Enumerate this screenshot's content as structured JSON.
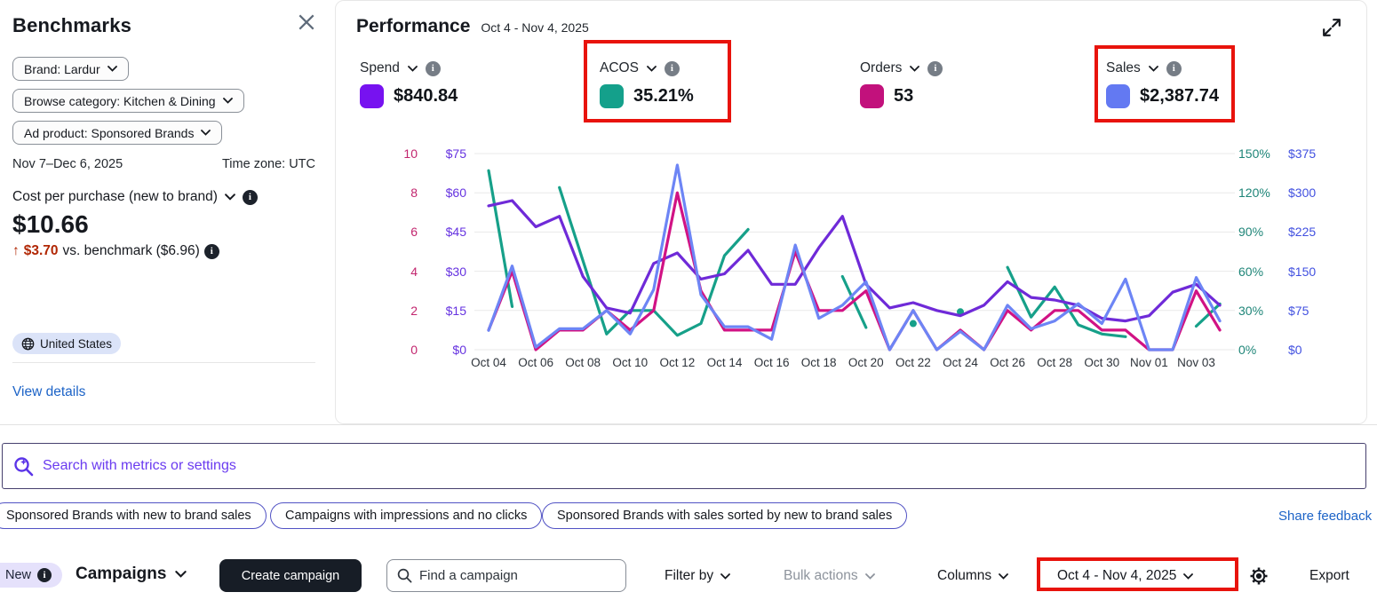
{
  "benchmarks": {
    "title": "Benchmarks",
    "filters": [
      {
        "label": "Brand: Lardur"
      },
      {
        "label": "Browse category: Kitchen & Dining"
      },
      {
        "label": "Ad product: Sponsored Brands"
      }
    ],
    "date_range": "Nov 7–Dec 6, 2025",
    "timezone": "Time zone: UTC",
    "metric_label": "Cost per purchase (new to brand)",
    "metric_value": "$10.66",
    "delta_arrow": "↑",
    "delta_value": "$3.70",
    "delta_text": "vs. benchmark ($6.96)",
    "region": "United States",
    "view_details": "View details"
  },
  "performance": {
    "title": "Performance",
    "date_range": "Oct 4 - Nov 4, 2025",
    "metrics": [
      {
        "label": "Spend",
        "value": "$840.84",
        "color": "#7712f0"
      },
      {
        "label": "ACOS",
        "value": "35.21%",
        "color": "#14a08b"
      },
      {
        "label": "Orders",
        "value": "53",
        "color": "#c2117c"
      },
      {
        "label": "Sales",
        "value": "$2,387.74",
        "color": "#6379f2"
      }
    ]
  },
  "search": {
    "placeholder": "Search with metrics or settings"
  },
  "suggestions": {
    "pills": [
      "Sponsored Brands with new to brand sales",
      "Campaigns with impressions and no clicks",
      "Sponsored Brands with sales sorted by new to brand sales"
    ],
    "feedback_link": "Share feedback"
  },
  "toolbar": {
    "new_badge": "New",
    "title": "Campaigns",
    "create_button": "Create campaign",
    "find_placeholder": "Find a campaign",
    "filter_by": "Filter by",
    "bulk_actions": "Bulk actions",
    "columns": "Columns",
    "date_range": "Oct 4 - Nov 4, 2025",
    "export": "Export"
  },
  "annotation_color": "#e8130c",
  "chart_data": {
    "type": "line",
    "title": "Performance Oct 4 - Nov 4, 2025",
    "grid": true,
    "x": [
      "Oct 04",
      "Oct 05",
      "Oct 06",
      "Oct 07",
      "Oct 08",
      "Oct 09",
      "Oct 10",
      "Oct 11",
      "Oct 12",
      "Oct 13",
      "Oct 14",
      "Oct 15",
      "Oct 16",
      "Oct 17",
      "Oct 18",
      "Oct 19",
      "Oct 20",
      "Oct 21",
      "Oct 22",
      "Oct 23",
      "Oct 24",
      "Oct 25",
      "Oct 26",
      "Oct 27",
      "Oct 28",
      "Oct 29",
      "Oct 30",
      "Oct 31",
      "Nov 01",
      "Nov 02",
      "Nov 03",
      "Nov 04"
    ],
    "x_tick_labels": [
      "Oct 04",
      "Oct 06",
      "Oct 08",
      "Oct 10",
      "Oct 12",
      "Oct 14",
      "Oct 16",
      "Oct 18",
      "Oct 20",
      "Oct 22",
      "Oct 24",
      "Oct 26",
      "Oct 28",
      "Oct 30",
      "Nov 01",
      "Nov 03"
    ],
    "axes": {
      "left_orders": {
        "ticks": [
          "0",
          "2",
          "4",
          "6",
          "8",
          "10"
        ],
        "max": 10,
        "color": "#c2256e"
      },
      "left_spend": {
        "ticks": [
          "$0",
          "$15",
          "$30",
          "$45",
          "$60",
          "$75"
        ],
        "max": 75,
        "color": "#6633e0"
      },
      "right_acos": {
        "ticks": [
          "0%",
          "30%",
          "60%",
          "90%",
          "120%",
          "150%"
        ],
        "max": 150,
        "color": "#1e8578"
      },
      "right_sales": {
        "ticks": [
          "$0",
          "$75",
          "$150",
          "$225",
          "$300",
          "$375"
        ],
        "max": 375,
        "color": "#4150e0"
      }
    },
    "series": [
      {
        "name": "ACOS",
        "unit": "%",
        "axis_max": 150,
        "color": "#16a089",
        "values": [
          137,
          33,
          null,
          124,
          68,
          12,
          30,
          30,
          11,
          20,
          72,
          92,
          null,
          null,
          null,
          56,
          17,
          null,
          20,
          null,
          29,
          null,
          63,
          25,
          48,
          19,
          12,
          10,
          null,
          null,
          18,
          35
        ]
      },
      {
        "name": "Spend",
        "unit": "$",
        "axis_max": 75,
        "color": "#6f2ad8",
        "values": [
          55,
          57,
          47,
          51,
          28,
          16,
          14,
          33,
          37,
          27,
          29,
          38,
          25,
          25,
          39,
          51,
          25,
          16,
          18,
          15,
          13,
          17,
          26,
          20,
          19,
          17,
          12,
          11,
          13,
          22,
          25,
          17
        ]
      },
      {
        "name": "Orders",
        "unit": "count",
        "axis_max": 10,
        "color": "#d11284",
        "values": [
          1,
          4,
          0,
          1,
          1,
          2,
          1,
          2,
          8,
          3,
          1,
          1,
          1,
          5,
          2,
          2,
          3,
          0,
          2,
          0,
          1,
          0,
          2,
          1,
          2,
          2,
          1,
          1,
          0,
          0,
          3,
          1
        ]
      },
      {
        "name": "Sales",
        "unit": "$",
        "axis_max": 375,
        "color": "#6d85f5",
        "values": [
          37,
          160,
          5,
          40,
          40,
          75,
          30,
          115,
          353,
          105,
          44,
          44,
          20,
          200,
          60,
          85,
          130,
          0,
          75,
          0,
          35,
          0,
          85,
          40,
          55,
          88,
          50,
          135,
          0,
          0,
          138,
          55
        ]
      }
    ]
  }
}
